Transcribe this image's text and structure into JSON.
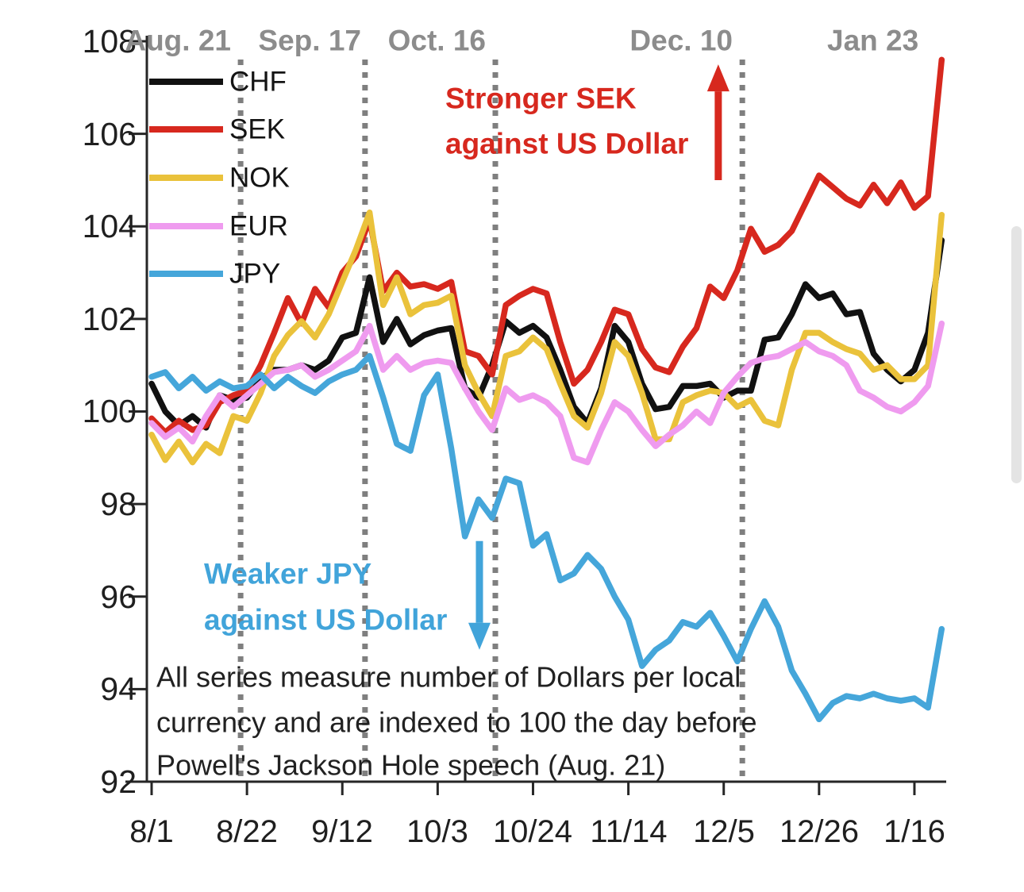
{
  "chart_data": {
    "type": "line",
    "title": "",
    "xlabel": "",
    "ylabel": "",
    "ylim": [
      92,
      108
    ],
    "grid": false,
    "legend_position": "top-left-inside",
    "y_ticks": [
      92,
      94,
      96,
      98,
      100,
      102,
      104,
      106,
      108
    ],
    "x_tick_labels": [
      "8/1",
      "8/22",
      "9/12",
      "10/3",
      "10/24",
      "11/14",
      "12/5",
      "12/26",
      "1/16"
    ],
    "x_tick_days": [
      0,
      21,
      42,
      63,
      84,
      105,
      126,
      147,
      168
    ],
    "x_unit": "days since 8/1",
    "day_start": 0,
    "day_step": 3,
    "axis_color": "#262626",
    "event_line_color": "#7f7f7f",
    "event_label_color": "#8c8c8c",
    "event_lines": [
      {
        "label": "Aug. 21",
        "day": 19.6
      },
      {
        "label": "Sep. 17",
        "day": 47.0
      },
      {
        "label": "Oct. 16",
        "day": 75.7
      },
      {
        "label": "Dec. 10",
        "day": 130.1
      }
    ],
    "end_label": {
      "text": "Jan 23",
      "color": "#d7281e"
    },
    "series": [
      {
        "name": "CHF",
        "color": "#111111",
        "values": [
          100.6,
          100.0,
          99.7,
          99.9,
          99.65,
          100.35,
          100.25,
          100.3,
          100.7,
          100.9,
          100.9,
          101.0,
          100.9,
          101.1,
          101.6,
          101.7,
          102.9,
          101.5,
          102.0,
          101.45,
          101.65,
          101.75,
          101.8,
          100.5,
          100.3,
          101.0,
          101.95,
          101.7,
          101.85,
          101.6,
          100.9,
          100.1,
          99.75,
          100.5,
          101.85,
          101.5,
          100.6,
          100.05,
          100.1,
          100.55,
          100.55,
          100.6,
          100.3,
          100.45,
          100.45,
          101.55,
          101.6,
          102.1,
          102.75,
          102.45,
          102.55,
          102.1,
          102.15,
          101.25,
          100.9,
          100.65,
          100.9,
          101.7,
          103.7
        ]
      },
      {
        "name": "SEK",
        "color": "#d7281e",
        "values": [
          99.85,
          99.55,
          99.8,
          99.6,
          99.7,
          100.2,
          100.35,
          100.45,
          101.0,
          101.7,
          102.45,
          101.9,
          102.65,
          102.25,
          103.0,
          103.35,
          104.15,
          102.6,
          103.0,
          102.7,
          102.75,
          102.65,
          102.8,
          101.3,
          101.2,
          100.8,
          102.3,
          102.5,
          102.65,
          102.55,
          101.5,
          100.6,
          100.9,
          101.5,
          102.2,
          102.1,
          101.35,
          100.95,
          100.85,
          101.4,
          101.8,
          102.7,
          102.45,
          103.05,
          103.95,
          103.45,
          103.6,
          103.9,
          104.5,
          105.1,
          104.85,
          104.6,
          104.45,
          104.9,
          104.5,
          104.95,
          104.4,
          104.65,
          107.6
        ]
      },
      {
        "name": "NOK",
        "color": "#eac23b",
        "values": [
          99.5,
          98.95,
          99.35,
          98.9,
          99.3,
          99.1,
          99.9,
          99.8,
          100.4,
          101.2,
          101.65,
          101.95,
          101.6,
          102.1,
          102.8,
          103.5,
          104.3,
          102.3,
          102.9,
          102.1,
          102.3,
          102.35,
          102.5,
          101.0,
          100.4,
          99.9,
          101.2,
          101.3,
          101.6,
          101.35,
          100.6,
          99.9,
          99.65,
          100.4,
          101.5,
          101.2,
          100.4,
          99.4,
          99.4,
          100.2,
          100.35,
          100.45,
          100.4,
          100.1,
          100.25,
          99.8,
          99.7,
          100.9,
          101.7,
          101.7,
          101.5,
          101.35,
          101.25,
          100.9,
          101.0,
          100.7,
          100.7,
          101.0,
          104.25
        ]
      },
      {
        "name": "EUR",
        "color": "#ef9bef",
        "values": [
          99.75,
          99.45,
          99.65,
          99.35,
          99.9,
          100.35,
          100.1,
          100.35,
          100.6,
          100.85,
          100.9,
          101.0,
          100.75,
          100.9,
          101.1,
          101.3,
          101.85,
          100.9,
          101.2,
          100.9,
          101.05,
          101.1,
          101.05,
          100.5,
          100.0,
          99.6,
          100.5,
          100.25,
          100.35,
          100.2,
          99.9,
          99.0,
          98.9,
          99.6,
          100.2,
          100.0,
          99.6,
          99.25,
          99.5,
          99.7,
          100.0,
          99.75,
          100.4,
          100.75,
          101.05,
          101.15,
          101.2,
          101.35,
          101.5,
          101.3,
          101.2,
          101.0,
          100.45,
          100.3,
          100.1,
          100.0,
          100.2,
          100.55,
          101.9
        ]
      },
      {
        "name": "JPY",
        "color": "#45a6da",
        "values": [
          100.75,
          100.85,
          100.5,
          100.75,
          100.45,
          100.65,
          100.5,
          100.55,
          100.8,
          100.5,
          100.75,
          100.55,
          100.4,
          100.65,
          100.8,
          100.9,
          101.2,
          100.3,
          99.3,
          99.15,
          100.35,
          100.8,
          99.2,
          97.3,
          98.1,
          97.7,
          98.55,
          98.45,
          97.1,
          97.35,
          96.35,
          96.5,
          96.9,
          96.6,
          96.0,
          95.5,
          94.5,
          94.85,
          95.05,
          95.45,
          95.35,
          95.65,
          95.15,
          94.6,
          95.3,
          95.9,
          95.35,
          94.4,
          93.9,
          93.35,
          93.7,
          93.85,
          93.8,
          93.9,
          93.8,
          93.75,
          93.8,
          93.6,
          95.3
        ]
      }
    ],
    "annotations": {
      "sek_note": {
        "lines": [
          "Stronger SEK",
          "against US Dollar"
        ],
        "color": "#d7281e"
      },
      "jpy_note": {
        "lines": [
          "Weaker JPY",
          "against US Dollar"
        ],
        "color": "#41a4da"
      },
      "arrows": [
        {
          "dir": "up",
          "name": "sek-stronger-arrow",
          "color": "#d7281e",
          "day": 124.8,
          "v_tail": 105.0,
          "v_tip": 107.5
        },
        {
          "dir": "down",
          "name": "jpy-weaker-arrow",
          "color": "#41a4da",
          "day": 72.2,
          "v_tail": 97.2,
          "v_tip": 94.85
        }
      ]
    },
    "footnote_lines": [
      "All series measure number of Dollars per local",
      "currency and are indexed to 100 the day before",
      "Powell's Jackson Hole speech (Aug. 21)"
    ]
  },
  "ui": {
    "scrollbar_thumb_color": "#e4e4e4"
  }
}
